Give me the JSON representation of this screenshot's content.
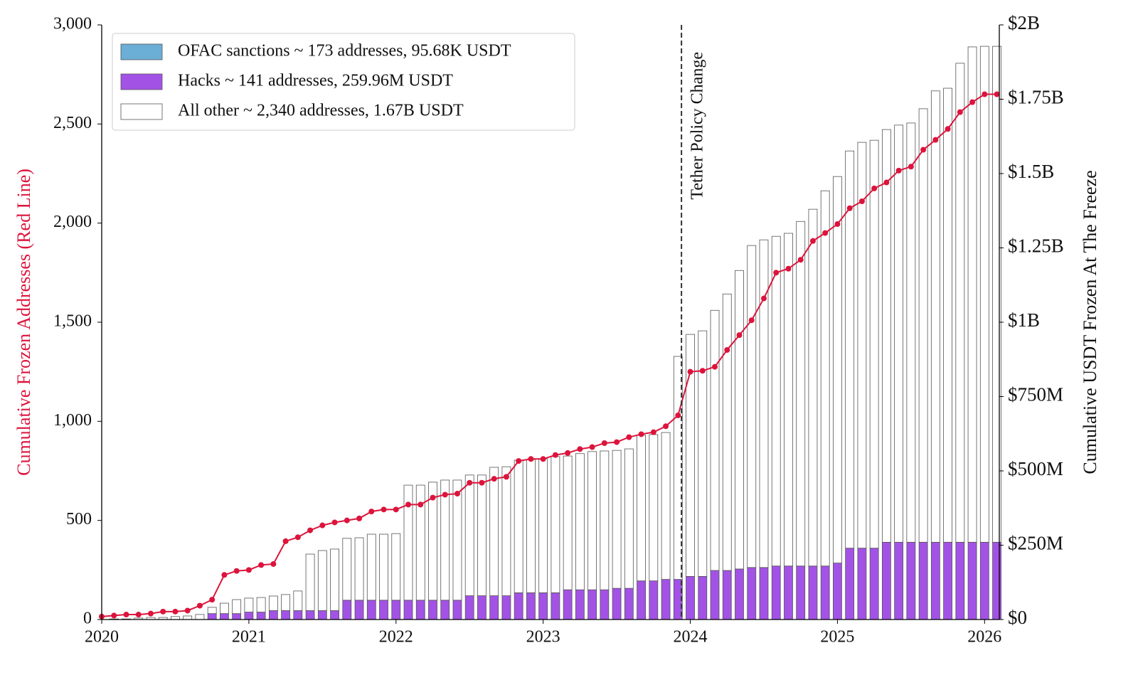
{
  "chart_data": {
    "type": "stacked-bar-line",
    "y_label": "Cumulative Frozen Addresses (Red Line)",
    "y2_label": "Cumulative USDT Frozen At The Freeze",
    "x": [
      "2020-01",
      "2020-02",
      "2020-03",
      "2020-04",
      "2020-05",
      "2020-06",
      "2020-07",
      "2020-08",
      "2020-09",
      "2020-10",
      "2020-11",
      "2020-12",
      "2021-01",
      "2021-02",
      "2021-03",
      "2021-04",
      "2021-05",
      "2021-06",
      "2021-07",
      "2021-08",
      "2021-09",
      "2021-10",
      "2021-11",
      "2021-12",
      "2022-01",
      "2022-02",
      "2022-03",
      "2022-04",
      "2022-05",
      "2022-06",
      "2022-07",
      "2022-08",
      "2022-09",
      "2022-10",
      "2022-11",
      "2022-12",
      "2023-01",
      "2023-02",
      "2023-03",
      "2023-04",
      "2023-05",
      "2023-06",
      "2023-07",
      "2023-08",
      "2023-09",
      "2023-10",
      "2023-11",
      "2023-12",
      "2024-01",
      "2024-02",
      "2024-03",
      "2024-04",
      "2024-05",
      "2024-06",
      "2024-07",
      "2024-08",
      "2024-09",
      "2024-10",
      "2024-11",
      "2024-12",
      "2025-01",
      "2025-02",
      "2025-03",
      "2025-04",
      "2025-05",
      "2025-06",
      "2025-07",
      "2025-08",
      "2025-09",
      "2025-10",
      "2025-11",
      "2025-12",
      "2026-01",
      "2026-02"
    ],
    "xlim": [
      2020,
      2026.1
    ],
    "xticks": [
      2020,
      2021,
      2022,
      2023,
      2024,
      2025,
      2026
    ],
    "ylim": [
      0,
      3000
    ],
    "yticks": [
      0,
      500,
      {
        "value": 1000,
        "label": "1,000"
      },
      {
        "value": 1500,
        "label": "1,500"
      },
      {
        "value": 2000,
        "label": "2,000"
      },
      {
        "value": 2500,
        "label": "2,500"
      },
      {
        "value": 3000,
        "label": "3,000"
      }
    ],
    "y2lim": [
      0,
      2000000000
    ],
    "y2ticks": [
      {
        "value": 0,
        "label": "$0"
      },
      {
        "value": 250000000,
        "label": "$250M"
      },
      {
        "value": 500000000,
        "label": "$500M"
      },
      {
        "value": 750000000,
        "label": "$750M"
      },
      {
        "value": 1000000000,
        "label": "$1B"
      },
      {
        "value": 1250000000,
        "label": "$1.25B"
      },
      {
        "value": 1500000000,
        "label": "$1.5B"
      },
      {
        "value": 1750000000,
        "label": "$1.75B"
      },
      {
        "value": 2000000000,
        "label": "$2B"
      }
    ],
    "grid": true,
    "legend": "upper left",
    "series": [
      {
        "name": "OFAC sanctions ~ 173 addresses, 95.68K USDT",
        "color": "#6baed6",
        "axis": "y2",
        "values": [
          0,
          0,
          0,
          0,
          0,
          0,
          0,
          0,
          0,
          0,
          0,
          0,
          0,
          0,
          0,
          0,
          0,
          0,
          0,
          0,
          0,
          0,
          0,
          0,
          0,
          0,
          0,
          0,
          0,
          0,
          0,
          0,
          0,
          0,
          0,
          0,
          0,
          0,
          0,
          0,
          0,
          0,
          0,
          0,
          0,
          0,
          0,
          0,
          0,
          0,
          0,
          0,
          0,
          0,
          0,
          0,
          0,
          0,
          0,
          0,
          0,
          0,
          0,
          0,
          0,
          0,
          0,
          0,
          0,
          0,
          0,
          0,
          0,
          0
        ]
      },
      {
        "name": "Hacks ~ 141 addresses, 259.96M USDT",
        "color": "#a352e6",
        "axis": "y2",
        "values": [
          0,
          0,
          0,
          0,
          0,
          0,
          0,
          0,
          0,
          20000000,
          20000000,
          20000000,
          25000000,
          25000000,
          30000000,
          30000000,
          30000000,
          30000000,
          30000000,
          30000000,
          65000000,
          65000000,
          65000000,
          65000000,
          65000000,
          65000000,
          65000000,
          65000000,
          65000000,
          65000000,
          80000000,
          80000000,
          80000000,
          80000000,
          90000000,
          90000000,
          90000000,
          90000000,
          100000000,
          100000000,
          100000000,
          100000000,
          105000000,
          105000000,
          130000000,
          130000000,
          135000000,
          135000000,
          145000000,
          145000000,
          165000000,
          165000000,
          170000000,
          175000000,
          175000000,
          180000000,
          180000000,
          180000000,
          180000000,
          180000000,
          190000000,
          240000000,
          240000000,
          240000000,
          260000000,
          260000000,
          260000000,
          260000000,
          260000000,
          260000000,
          260000000,
          260000000,
          260000000,
          260000000
        ]
      },
      {
        "name": "All other ~ 2,340 addresses, 1.67B USDT",
        "color": "#ffffff",
        "axis": "y2",
        "values": [
          0,
          2000000,
          2000000,
          5000000,
          7000000,
          7000000,
          10000000,
          12000000,
          17000000,
          21000000,
          35000000,
          47000000,
          47000000,
          49000000,
          49000000,
          54000000,
          66000000,
          190000000,
          202000000,
          207000000,
          208000000,
          210000000,
          222000000,
          222000000,
          224000000,
          387000000,
          387000000,
          397000000,
          404000000,
          404000000,
          406000000,
          406000000,
          432000000,
          434000000,
          446000000,
          448000000,
          451000000,
          458000000,
          450000000,
          458000000,
          465000000,
          467000000,
          464000000,
          469000000,
          490000000,
          492000000,
          494000000,
          750000000,
          814000000,
          826000000,
          875000000,
          930000000,
          1004000000,
          1083000000,
          1102000000,
          1109000000,
          1119000000,
          1159000000,
          1200000000,
          1262000000,
          1300000000,
          1336000000,
          1365000000,
          1372000000,
          1388000000,
          1403000000,
          1410000000,
          1458000000,
          1518000000,
          1527000000,
          1611000000,
          1666000000,
          1668000000,
          1668000000
        ]
      }
    ],
    "line": {
      "color": "#dc143c",
      "values": [
        15,
        20,
        25,
        25,
        30,
        40,
        40,
        45,
        70,
        100,
        225,
        245,
        250,
        275,
        280,
        395,
        415,
        450,
        475,
        490,
        500,
        510,
        545,
        555,
        555,
        580,
        580,
        615,
        630,
        635,
        690,
        690,
        710,
        720,
        800,
        810,
        810,
        830,
        840,
        860,
        870,
        890,
        895,
        920,
        935,
        945,
        975,
        1030,
        1250,
        1255,
        1275,
        1360,
        1435,
        1510,
        1620,
        1750,
        1770,
        1815,
        1910,
        1950,
        1995,
        2075,
        2110,
        2175,
        2205,
        2265,
        2285,
        2370,
        2420,
        2475,
        2560,
        2610,
        2650,
        2650
      ]
    },
    "annotation": {
      "text": "Tether Policy Change",
      "x": 2023.94
    }
  }
}
